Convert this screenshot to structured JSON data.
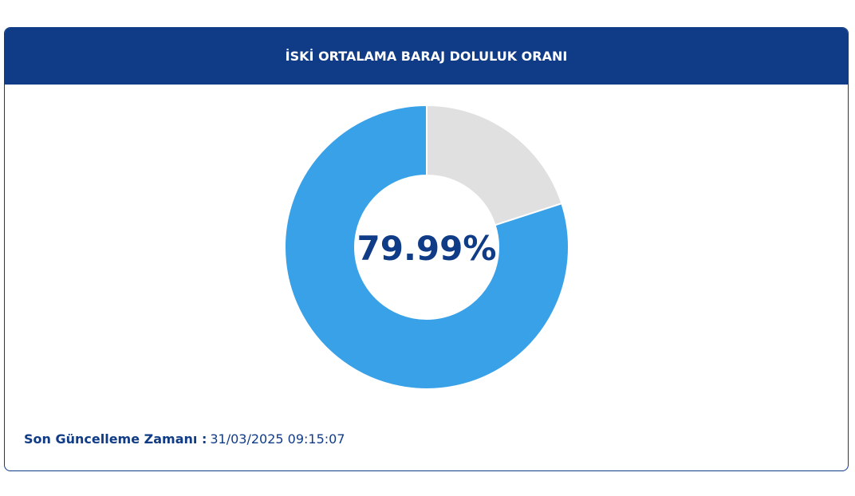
{
  "chart_data": {
    "type": "donut",
    "title": "İSKİ ORTALAMA BARAJ DOLULUK ORANI",
    "values": [
      79.99,
      20.01
    ],
    "value_labels": [
      "79.99%",
      null
    ],
    "colors": [
      "#38a1e8",
      "#e0e0e0"
    ]
  },
  "footer": {
    "label": "Son Güncelleme Zamanı :",
    "value": "31/03/2025 09:15:07"
  }
}
